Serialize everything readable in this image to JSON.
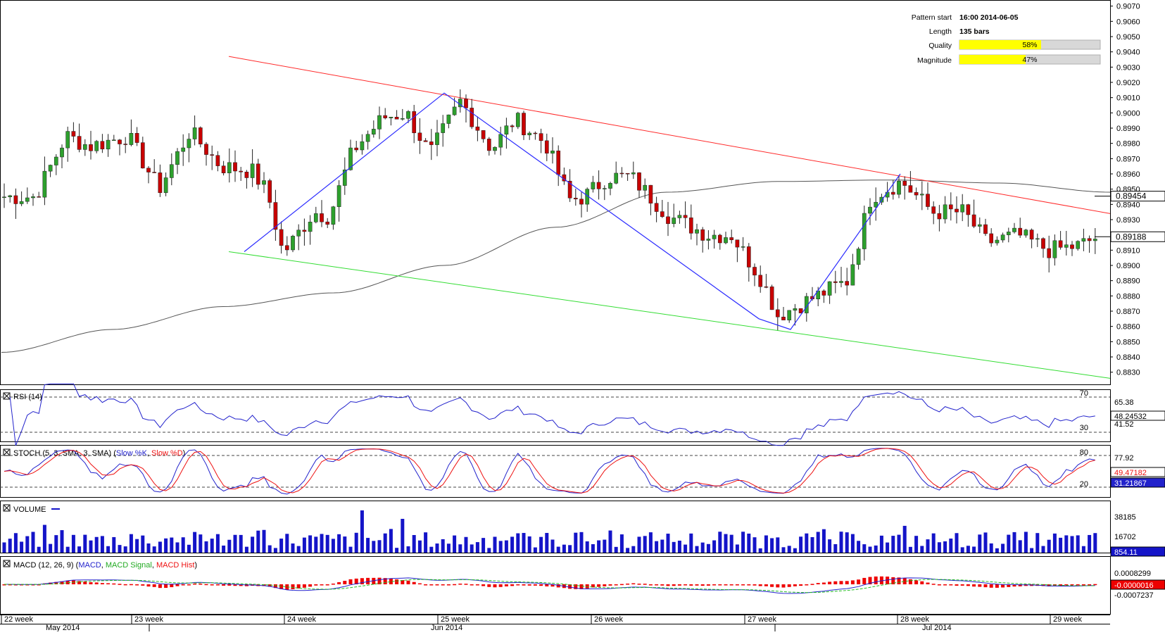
{
  "pattern_info": {
    "rows": [
      {
        "label": "Pattern start",
        "value": "16:00 2014-06-05"
      },
      {
        "label": "Length",
        "value": "135 bars"
      }
    ],
    "quality": {
      "label": "Quality",
      "value": "58%",
      "fraction": 0.58
    },
    "magnitude": {
      "label": "Magnitude",
      "value": "47%",
      "fraction": 0.47
    }
  },
  "colors": {
    "bull": "#2da02d",
    "bear": "#c80000",
    "channel_upper": "#ff2a2a",
    "channel_lower": "#33dd33",
    "zigzag": "#2b2bff",
    "ma": "#555555",
    "indicator_blue": "#2222cc",
    "indicator_red": "#ee1111",
    "macd_signal": "#22bb22",
    "hist": "#ee0000",
    "volume": "#1414c8",
    "gauge": "#ffff00"
  },
  "time_axis": {
    "weeks": [
      "22 week",
      "23 week",
      "24 week",
      "25 week",
      "26 week",
      "27 week",
      "28 week",
      "29 week"
    ],
    "months": [
      "May 2014",
      "Jun 2014",
      "Jul 2014"
    ]
  },
  "chart_data": {
    "type": "candlestick",
    "price_axis": {
      "range": [
        0.8822,
        0.9074
      ],
      "ticks": [
        "0.9070",
        "0.9060",
        "0.9050",
        "0.9040",
        "0.9030",
        "0.9020",
        "0.9010",
        "0.9000",
        "0.8990",
        "0.8980",
        "0.8970",
        "0.8960",
        "0.8950",
        "0.8940",
        "0.8930",
        "0.8920",
        "0.8910",
        "0.8900",
        "0.8890",
        "0.8880",
        "0.8870",
        "0.8860",
        "0.8850",
        "0.8840",
        "0.8830"
      ]
    },
    "bar_count": 190,
    "close_path": [
      [
        0,
        0.8945
      ],
      [
        8,
        0.8945
      ],
      [
        16,
        0.8985
      ],
      [
        22,
        0.8978
      ],
      [
        32,
        0.8985
      ],
      [
        40,
        0.895
      ],
      [
        48,
        0.8988
      ],
      [
        56,
        0.8965
      ],
      [
        64,
        0.8962
      ],
      [
        68,
        0.8948
      ],
      [
        72,
        0.8908
      ],
      [
        74,
        0.8914
      ],
      [
        80,
        0.8935
      ],
      [
        84,
        0.8932
      ],
      [
        90,
        0.8975
      ],
      [
        98,
        0.8997
      ],
      [
        104,
        0.9
      ],
      [
        110,
        0.8973
      ],
      [
        118,
        0.9008
      ],
      [
        126,
        0.8976
      ],
      [
        132,
        0.8996
      ],
      [
        140,
        0.898
      ],
      [
        146,
        0.8943
      ],
      [
        150,
        0.8945
      ],
      [
        156,
        0.8958
      ],
      [
        162,
        0.8958
      ],
      [
        172,
        0.8932
      ],
      [
        182,
        0.892
      ],
      [
        188,
        0.892
      ],
      [
        196,
        0.889
      ],
      [
        200,
        0.8867
      ],
      [
        210,
        0.888
      ],
      [
        218,
        0.889
      ],
      [
        224,
        0.8945
      ],
      [
        232,
        0.8955
      ],
      [
        240,
        0.8935
      ],
      [
        248,
        0.8935
      ],
      [
        254,
        0.8915
      ],
      [
        262,
        0.892
      ],
      [
        270,
        0.891
      ],
      [
        278,
        0.8913
      ],
      [
        282,
        0.8918
      ]
    ],
    "channel_upper": {
      "start": [
        0.44,
        0.9037
      ],
      "end": [
        1.0,
        0.8934
      ]
    },
    "channel_lower": {
      "start": [
        0.44,
        0.8909
      ],
      "end": [
        1.0,
        0.8826
      ]
    },
    "zigzag": [
      [
        0.44,
        0.8909
      ],
      [
        0.8,
        0.9013
      ],
      [
        1.36,
        0.8865
      ],
      [
        1.42,
        0.8858
      ],
      [
        1.62,
        0.896
      ]
    ],
    "moving_average": {
      "start_value": 0.8843,
      "values": [
        0.8843,
        0.8858,
        0.8873,
        0.8882,
        0.89,
        0.8925,
        0.8948,
        0.8955,
        0.8956,
        0.8954,
        0.8948
      ]
    },
    "current_price": {
      "label": "0.89188",
      "value": 0.89188
    },
    "ma_value": {
      "label": "0.89454",
      "value": 0.89454
    }
  },
  "indicators": {
    "rsi": {
      "title": "RSI (14)",
      "levels": [
        "70",
        "30"
      ],
      "last_label": "48.24532",
      "extra_label": "65.38",
      "extra_label2": "41.52"
    },
    "stoch": {
      "title_prefix": "STOCH (5, 3, SMA, 3, SMA) (",
      "slow_k": "Slow %K",
      "sep": ", ",
      "slow_d": "Slow %D",
      "title_suffix": ")",
      "levels": [
        "80",
        "20"
      ],
      "label1": "77.92",
      "k_label": "49.47182",
      "d_label": "31.21867"
    },
    "volume": {
      "title": "VOLUME",
      "axis": [
        "38185",
        "16702"
      ],
      "last_label": "854.11"
    },
    "macd": {
      "title_prefix": "MACD (12, 26, 9) (",
      "macd": "MACD",
      "signal": "MACD Signal",
      "hist": "MACD Hist",
      "sep": ", ",
      "title_suffix": ")",
      "labels": [
        "0.0008299",
        "-0.0000016",
        "-0.0007237"
      ]
    }
  }
}
